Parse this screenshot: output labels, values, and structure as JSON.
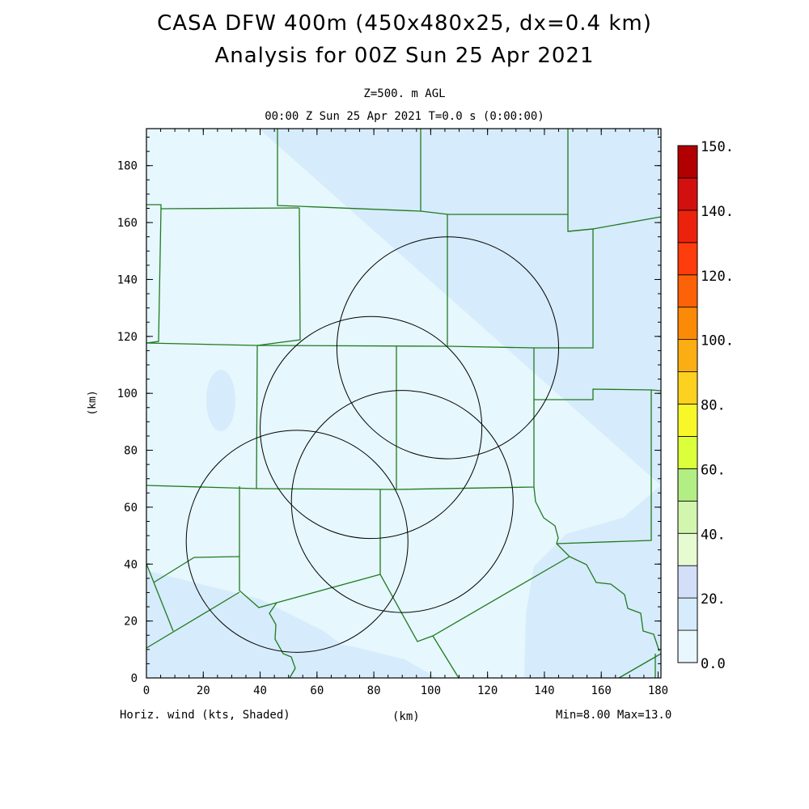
{
  "title": {
    "line1": "CASA DFW 400m (450x480x25, dx=0.4 km)",
    "line2": "Analysis for 00Z Sun 25 Apr 2021"
  },
  "subtitle": {
    "level": "Z=500. m AGL",
    "time": "00:00 Z Sun 25 Apr 2021   T=0.0 s (0:00:00)"
  },
  "axes": {
    "xlabel": "(km)",
    "ylabel": "(km)",
    "x_ticks": [
      "0",
      "20",
      "40",
      "60",
      "80",
      "100",
      "120",
      "140",
      "160",
      "180"
    ],
    "y_ticks": [
      "0",
      "20",
      "40",
      "60",
      "80",
      "100",
      "120",
      "140",
      "160",
      "180"
    ],
    "xlim": [
      0,
      181
    ],
    "ylim": [
      0,
      193
    ]
  },
  "footer": {
    "field": "Horiz. wind (kts, Shaded)",
    "units": "(km)",
    "minmax": "Min=8.00 Max=13.0"
  },
  "colorbar": {
    "labels": [
      "150.",
      "140.",
      "120.",
      "100.",
      "80.",
      "60.",
      "40.",
      "20.",
      "0.0"
    ],
    "colors": [
      "#e8f7fd",
      "#d6ebfb",
      "#d3def9",
      "#e7fbd3",
      "#d3f6af",
      "#b3ee84",
      "#dcff3c",
      "#f7f72a",
      "#fdd11f",
      "#fbae13",
      "#fb8a07",
      "#fc6207",
      "#fe3c0c",
      "#eb230c",
      "#d21010",
      "#b20000"
    ],
    "field_colors": {
      "light": "#e6f7fd",
      "mid": "#d6ebfb"
    }
  },
  "map": {
    "border_color": "#207a20",
    "ring_color": "#000000",
    "radar_rings": [
      {
        "center_km": [
          106,
          116
        ],
        "radius_km": 39
      },
      {
        "center_km": [
          79,
          88
        ],
        "radius_km": 39
      },
      {
        "center_km": [
          90,
          62
        ],
        "radius_km": 39
      },
      {
        "center_km": [
          53,
          48
        ],
        "radius_km": 39
      }
    ]
  }
}
